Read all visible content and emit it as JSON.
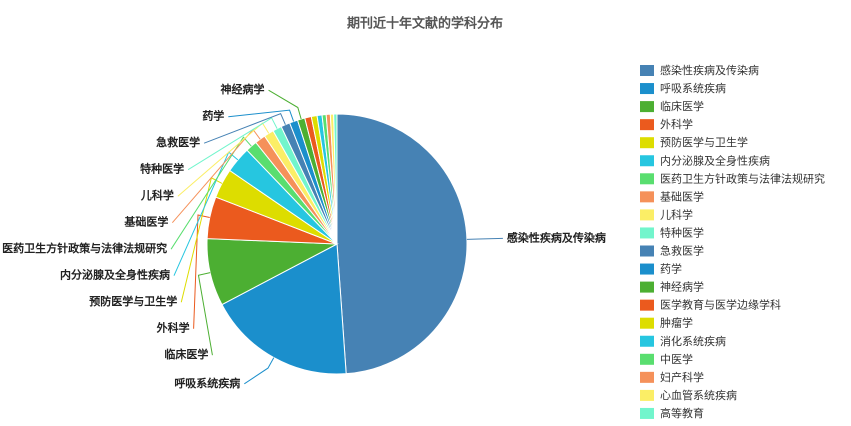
{
  "chart_data": {
    "type": "pie",
    "title": "期刊近十年文献的学科分布",
    "categories": [
      "感染性疾病及传染病",
      "呼吸系统疾病",
      "临床医学",
      "外科学",
      "预防医学与卫生学",
      "内分泌腺及全身性疾病",
      "医药卫生方针政策与法律法规研究",
      "基础医学",
      "儿科学",
      "特种医学",
      "急救医学",
      "药学",
      "神经病学",
      "医学教育与医学边缘学科",
      "肿瘤学",
      "消化系统疾病",
      "中医学",
      "妇产科学",
      "心血管系统疾病",
      "高等教育"
    ],
    "values": [
      47.8,
      18,
      8.2,
      5.1,
      3.6,
      3.2,
      1.4,
      1.3,
      1.2,
      1.1,
      1.1,
      1.0,
      0.9,
      0.8,
      0.7,
      0.6,
      0.5,
      0.5,
      0.4,
      0.4
    ],
    "colors": [
      "#4682b4",
      "#1b8fcc",
      "#4caf32",
      "#eb5a1e",
      "#dddd00",
      "#26c6e0",
      "#59de6f",
      "#f5915a",
      "#fbee66",
      "#72f5cc",
      "#4682b4",
      "#1b8fcc",
      "#4caf32",
      "#eb5a1e",
      "#dddd00",
      "#26c6e0",
      "#59de6f",
      "#f5915a",
      "#fbee66",
      "#72f5cc"
    ],
    "legend": "right"
  }
}
